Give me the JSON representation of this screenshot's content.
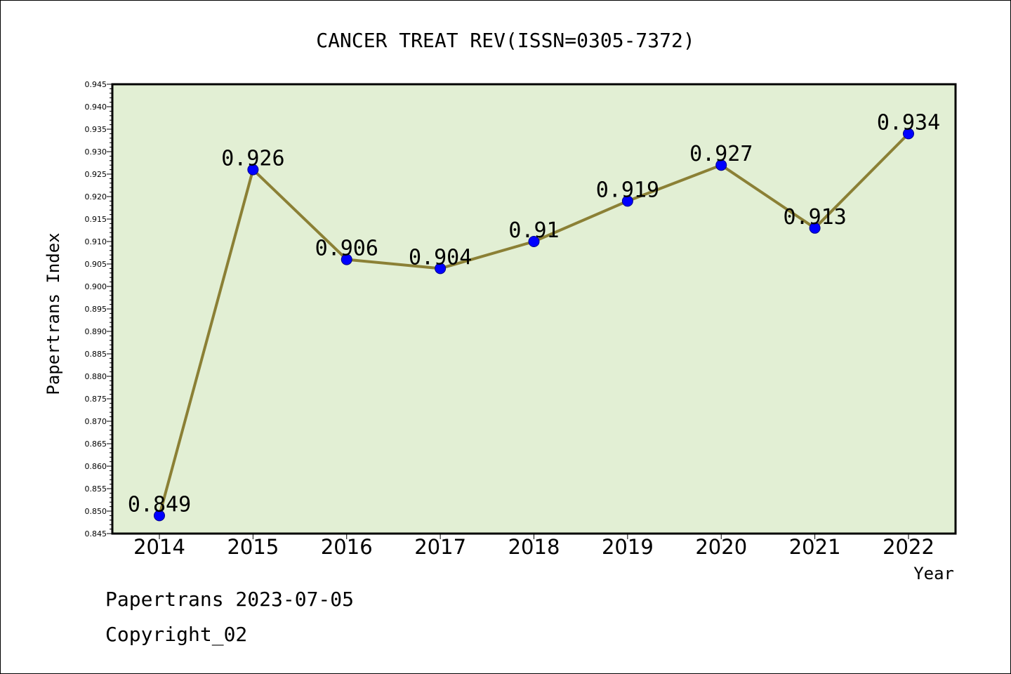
{
  "chart_data": {
    "type": "line",
    "title": "CANCER TREAT REV(ISSN=0305-7372)",
    "xlabel": "Year",
    "ylabel": "Papertrans Index",
    "categories": [
      "2014",
      "2015",
      "2016",
      "2017",
      "2018",
      "2019",
      "2020",
      "2021",
      "2022"
    ],
    "values": [
      0.849,
      0.926,
      0.906,
      0.904,
      0.91,
      0.919,
      0.927,
      0.913,
      0.934
    ],
    "data_labels": [
      "0.849",
      "0.926",
      "0.906",
      "0.904",
      "0.91",
      "0.919",
      "0.927",
      "0.913",
      "0.934"
    ],
    "ylim": [
      0.845,
      0.945
    ],
    "yticks": [
      "0.845",
      "0.850",
      "0.855",
      "0.860",
      "0.865",
      "0.870",
      "0.875",
      "0.880",
      "0.885",
      "0.890",
      "0.895",
      "0.900",
      "0.905",
      "0.910",
      "0.915",
      "0.920",
      "0.925",
      "0.930",
      "0.935",
      "0.940",
      "0.945"
    ],
    "grid": false,
    "colors": {
      "plot_background": "#e2efd4",
      "line": "#8b8035",
      "marker": "#0000ff"
    }
  },
  "footer": {
    "line1": "Papertrans 2023-07-05",
    "line2": "Copyright_02"
  }
}
